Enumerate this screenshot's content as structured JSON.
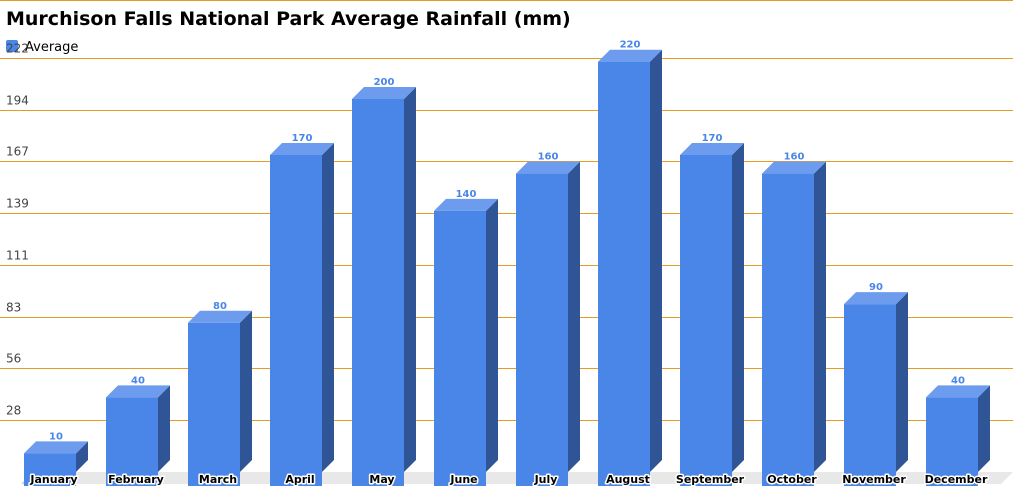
{
  "chart_data": {
    "type": "bar",
    "title": "Murchison Falls National Park Average Rainfall (mm)",
    "xlabel": "",
    "ylabel": "",
    "categories": [
      "January",
      "February",
      "March",
      "April",
      "May",
      "June",
      "July",
      "August",
      "September",
      "October",
      "November",
      "December"
    ],
    "series": [
      {
        "name": "Average",
        "values": [
          10,
          40,
          80,
          170,
          200,
          140,
          160,
          220,
          170,
          160,
          90,
          40
        ]
      }
    ],
    "data_labels": [
      "10",
      "40",
      "80",
      "170",
      "200",
      "140",
      "160",
      "220",
      "170",
      "160",
      "90",
      "40"
    ],
    "y_ticks": [
      "28",
      "56",
      "83",
      "111",
      "139",
      "167",
      "194",
      "222"
    ],
    "ylim": [
      0,
      222
    ],
    "grid": true,
    "legend_position": "top-left",
    "colors": {
      "bar_front": "#4a86e8",
      "bar_top": "#6d9cee",
      "bar_side": "#2f5597",
      "gridline": "#e69c24",
      "value_label": "#4a86e8",
      "floor": "#e8e8e8"
    }
  }
}
